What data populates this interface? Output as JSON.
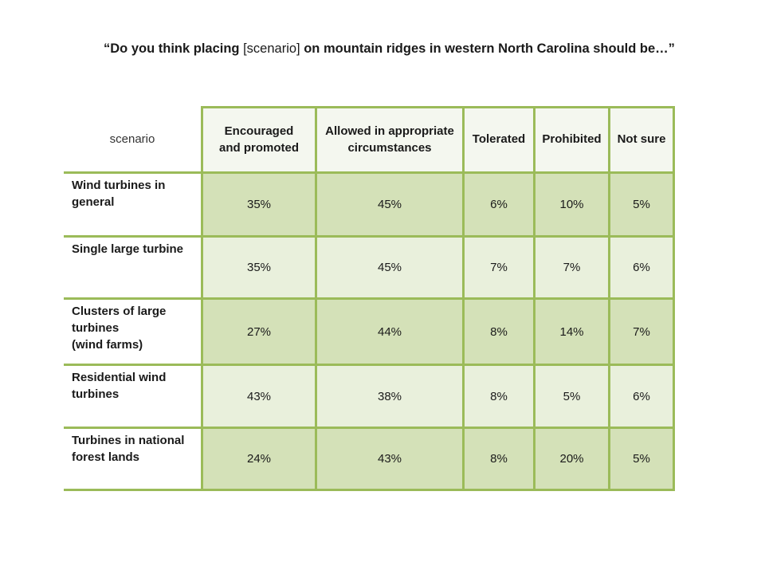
{
  "slide": {
    "question_before": "“Do you think placing ",
    "question_scenario": "[scenario]",
    "question_after": " on mountain ridges in western North Carolina should be…”"
  },
  "table": {
    "corner_label": "scenario",
    "columns": [
      [
        "Encouraged",
        "and promoted"
      ],
      [
        "Allowed in appropriate",
        "circumstances"
      ],
      [
        "Tolerated"
      ],
      [
        "Prohibited"
      ],
      [
        "Not sure"
      ]
    ],
    "rows": [
      {
        "label": [
          "Wind turbines  in",
          "general"
        ],
        "values": [
          "35%",
          "45%",
          "6%",
          "10%",
          "5%"
        ]
      },
      {
        "label": [
          "Single large turbine"
        ],
        "values": [
          "35%",
          "45%",
          "7%",
          "7%",
          "6%"
        ]
      },
      {
        "label": [
          "Clusters of large",
          "turbines",
          "(wind farms)"
        ],
        "values": [
          "27%",
          "44%",
          "8%",
          "14%",
          "7%"
        ]
      },
      {
        "label": [
          "Residential wind",
          "turbines"
        ],
        "values": [
          "43%",
          "38%",
          "8%",
          "5%",
          "6%"
        ]
      },
      {
        "label": [
          "Turbines in national",
          "forest lands"
        ],
        "values": [
          "24%",
          "43%",
          "8%",
          "20%",
          "5%"
        ]
      }
    ]
  },
  "colors": {
    "border_green": "#9bbb59",
    "cell_dark": "#d4e1b8",
    "cell_light": "#e9f0dc",
    "header_bg": "#f4f7ef"
  }
}
